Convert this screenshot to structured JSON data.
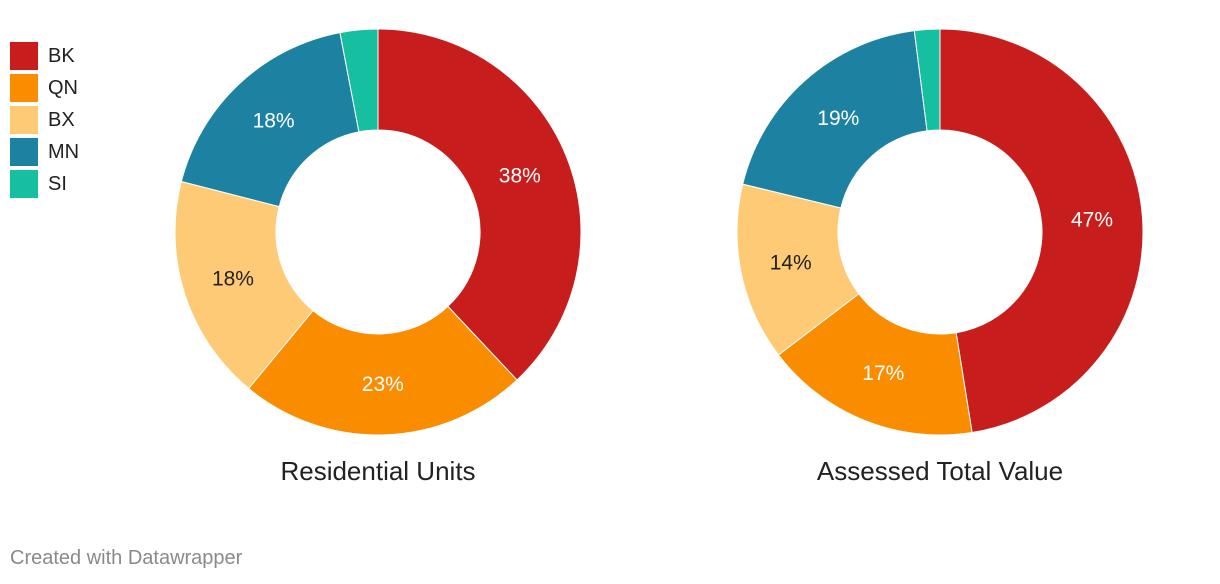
{
  "legend": [
    {
      "label": "BK",
      "color": "#c71e1d"
    },
    {
      "label": "QN",
      "color": "#fa8c00"
    },
    {
      "label": "BX",
      "color": "#ffca76"
    },
    {
      "label": "MN",
      "color": "#1d81a2"
    },
    {
      "label": "SI",
      "color": "#15bfa0"
    }
  ],
  "chart_data": [
    {
      "type": "pie",
      "title": "Residential Units",
      "categories": [
        "BK",
        "QN",
        "BX",
        "MN",
        "SI"
      ],
      "values": [
        38,
        23,
        18,
        18,
        3
      ],
      "labels": [
        "38%",
        "23%",
        "18%",
        "18%",
        ""
      ],
      "colors": [
        "#c71e1d",
        "#fa8c00",
        "#ffca76",
        "#1d81a2",
        "#15bfa0"
      ],
      "label_colors": [
        "#ffffff",
        "#ffffff",
        "#222222",
        "#ffffff",
        "#ffffff"
      ]
    },
    {
      "type": "pie",
      "title": "Assessed Total Value",
      "categories": [
        "BK",
        "QN",
        "BX",
        "MN",
        "SI"
      ],
      "values": [
        47,
        17,
        14,
        19,
        2
      ],
      "labels": [
        "47%",
        "17%",
        "14%",
        "19%",
        ""
      ],
      "colors": [
        "#c71e1d",
        "#fa8c00",
        "#ffca76",
        "#1d81a2",
        "#15bfa0"
      ],
      "label_colors": [
        "#ffffff",
        "#ffffff",
        "#222222",
        "#ffffff",
        "#ffffff"
      ]
    }
  ],
  "footer": "Created with Datawrapper"
}
